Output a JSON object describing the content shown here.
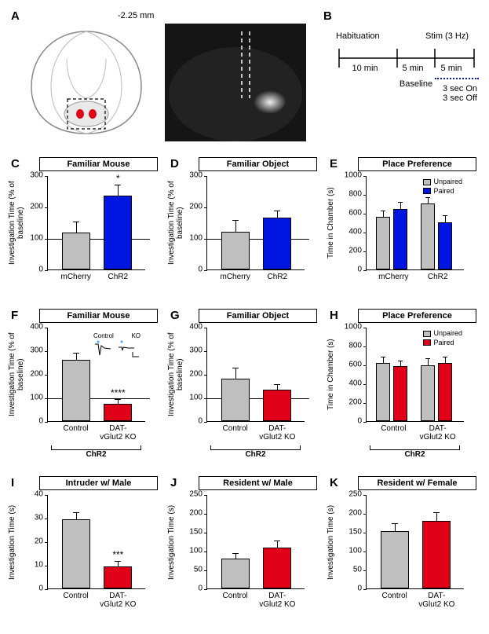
{
  "bregma": "-2.25 mm",
  "panelB": {
    "habituation": "Habituation",
    "stim": "Stim (3 Hz)",
    "t10": "10 min",
    "t5a": "5 min",
    "t5b": "5 min",
    "baseline": "Baseline",
    "on": "3 sec On",
    "off": "3 sec Off"
  },
  "colors": {
    "gray": "#bfbfbf",
    "blue": "#0015e0",
    "red": "#e00018",
    "darkblue": "#0018b0"
  },
  "axis_pct": {
    "label": "Investigation Time\n(% of baseline)",
    "max": 300,
    "ticks": [
      0,
      100,
      200,
      300
    ]
  },
  "axis_pct400": {
    "label": "Investigation Time\n(% of baseline)",
    "max": 400,
    "ticks": [
      0,
      100,
      200,
      300,
      400
    ]
  },
  "axis_cpp": {
    "label": "Time in Chamber (s)",
    "max": 1000,
    "ticks": [
      0,
      200,
      400,
      600,
      800,
      1000
    ]
  },
  "axis_time40": {
    "label": "Investigation Time (s)",
    "max": 40,
    "ticks": [
      0,
      10,
      20,
      30,
      40
    ]
  },
  "axis_time250": {
    "label": "Investigation Time (s)",
    "max": 250,
    "ticks": [
      0,
      50,
      100,
      150,
      200,
      250
    ]
  },
  "C": {
    "title": "Familiar Mouse",
    "bars": [
      {
        "x": "mCherry",
        "val": 118,
        "err": 32,
        "color": "#bfbfbf"
      },
      {
        "x": "ChR2",
        "val": 235,
        "err": 32,
        "color": "#0015e0",
        "sig": "*"
      }
    ],
    "baseline": 100,
    "axis": "axis_pct"
  },
  "D": {
    "title": "Familiar Object",
    "bars": [
      {
        "x": "mCherry",
        "val": 120,
        "err": 35,
        "color": "#bfbfbf"
      },
      {
        "x": "ChR2",
        "val": 165,
        "err": 20,
        "color": "#0015e0"
      }
    ],
    "baseline": 100,
    "axis": "axis_pct"
  },
  "E": {
    "title": "Place Preference",
    "legend": [
      {
        "c": "#bfbfbf",
        "t": "Unpaired"
      },
      {
        "c": "#0015e0",
        "t": "Paired"
      }
    ],
    "groups": [
      {
        "x": "mCherry",
        "bars": [
          {
            "val": 555,
            "err": 65,
            "color": "#bfbfbf"
          },
          {
            "val": 640,
            "err": 65,
            "color": "#0015e0"
          }
        ]
      },
      {
        "x": "ChR2",
        "bars": [
          {
            "val": 700,
            "err": 55,
            "color": "#bfbfbf"
          },
          {
            "val": 500,
            "err": 70,
            "color": "#0015e0"
          }
        ]
      }
    ],
    "axis": "axis_cpp"
  },
  "F": {
    "title": "Familiar Mouse",
    "bars": [
      {
        "x": "Control",
        "val": 260,
        "err": 28,
        "color": "#bfbfbf"
      },
      {
        "x": "DAT-\nvGlut2 KO",
        "val": 75,
        "err": 15,
        "color": "#e00018",
        "sig": "****"
      }
    ],
    "baseline": 100,
    "axis": "axis_pct400",
    "bracket": "ChR2",
    "inset": {
      "l1": "Control",
      "l2": "KO"
    }
  },
  "G": {
    "title": "Familiar Object",
    "bars": [
      {
        "x": "Control",
        "val": 180,
        "err": 45,
        "color": "#bfbfbf"
      },
      {
        "x": "DAT-\nvGlut2 KO",
        "val": 135,
        "err": 20,
        "color": "#e00018"
      }
    ],
    "baseline": 100,
    "axis": "axis_pct400",
    "bracket": "ChR2"
  },
  "H": {
    "title": "Place Preference",
    "legend": [
      {
        "c": "#bfbfbf",
        "t": "Unpaired"
      },
      {
        "c": "#e00018",
        "t": "Paired"
      }
    ],
    "groups": [
      {
        "x": "Control",
        "bars": [
          {
            "val": 620,
            "err": 55,
            "color": "#bfbfbf"
          },
          {
            "val": 580,
            "err": 55,
            "color": "#e00018"
          }
        ]
      },
      {
        "x": "DAT-\nvGlut2 KO",
        "bars": [
          {
            "val": 595,
            "err": 60,
            "color": "#bfbfbf"
          },
          {
            "val": 615,
            "err": 60,
            "color": "#e00018"
          }
        ]
      }
    ],
    "axis": "axis_cpp",
    "bracket": "ChR2"
  },
  "I": {
    "title": "Intruder w/ Male",
    "bars": [
      {
        "x": "Control",
        "val": 29.5,
        "err": 2.5,
        "color": "#bfbfbf"
      },
      {
        "x": "DAT-\nvGlut2 KO",
        "val": 9.5,
        "err": 2,
        "color": "#e00018",
        "sig": "***"
      }
    ],
    "axis": "axis_time40"
  },
  "J": {
    "title": "Resident w/ Male",
    "bars": [
      {
        "x": "Control",
        "val": 80,
        "err": 11,
        "color": "#bfbfbf"
      },
      {
        "x": "DAT-\nvGlut2 KO",
        "val": 108,
        "err": 18,
        "color": "#e00018"
      }
    ],
    "axis": "axis_time250"
  },
  "K": {
    "title": "Resident w/ Female",
    "bars": [
      {
        "x": "Control",
        "val": 153,
        "err": 18,
        "color": "#bfbfbf"
      },
      {
        "x": "DAT-\nvGlut2 KO",
        "val": 180,
        "err": 20,
        "color": "#e00018"
      }
    ],
    "axis": "axis_time250"
  }
}
